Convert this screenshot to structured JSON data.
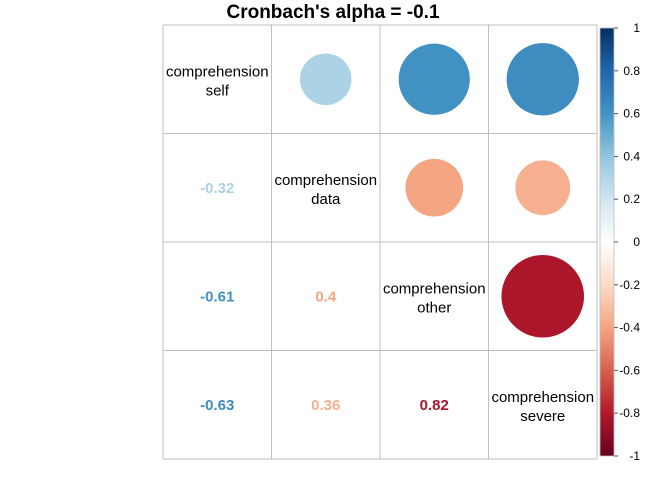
{
  "chart_data": {
    "type": "heatmap",
    "title": "Cronbach's alpha =  -0.1",
    "variables": [
      [
        "comprehension",
        "self"
      ],
      [
        "comprehension",
        "data"
      ],
      [
        "comprehension",
        "other"
      ],
      [
        "comprehension",
        "severe"
      ]
    ],
    "matrix": [
      [
        1,
        -0.32,
        -0.61,
        -0.63
      ],
      [
        -0.32,
        1,
        0.4,
        0.36
      ],
      [
        -0.61,
        0.4,
        1,
        0.82
      ],
      [
        -0.63,
        0.36,
        0.82,
        1
      ]
    ],
    "lower_labels": [
      {
        "row": 1,
        "col": 0,
        "text": "-0.32"
      },
      {
        "row": 2,
        "col": 0,
        "text": "-0.61"
      },
      {
        "row": 2,
        "col": 1,
        "text": "0.4"
      },
      {
        "row": 3,
        "col": 0,
        "text": "-0.63"
      },
      {
        "row": 3,
        "col": 1,
        "text": "0.36"
      },
      {
        "row": 3,
        "col": 2,
        "text": "0.82"
      }
    ],
    "upper_display": "circle",
    "colorbar": {
      "range": [
        -1,
        1
      ],
      "ticks": [
        "1",
        "0.8",
        "0.6",
        "0.4",
        "0.2",
        "0",
        "-0.2",
        "-0.4",
        "-0.6",
        "-0.8",
        "-1"
      ],
      "colors": [
        "#67001F",
        "#B2182B",
        "#D6604D",
        "#F4A582",
        "#FDDBC7",
        "#FFFFFF",
        "#D1E5F0",
        "#92C5DE",
        "#4393C3",
        "#2166AC",
        "#053061"
      ]
    },
    "grid_color": "#bfbfbf"
  }
}
